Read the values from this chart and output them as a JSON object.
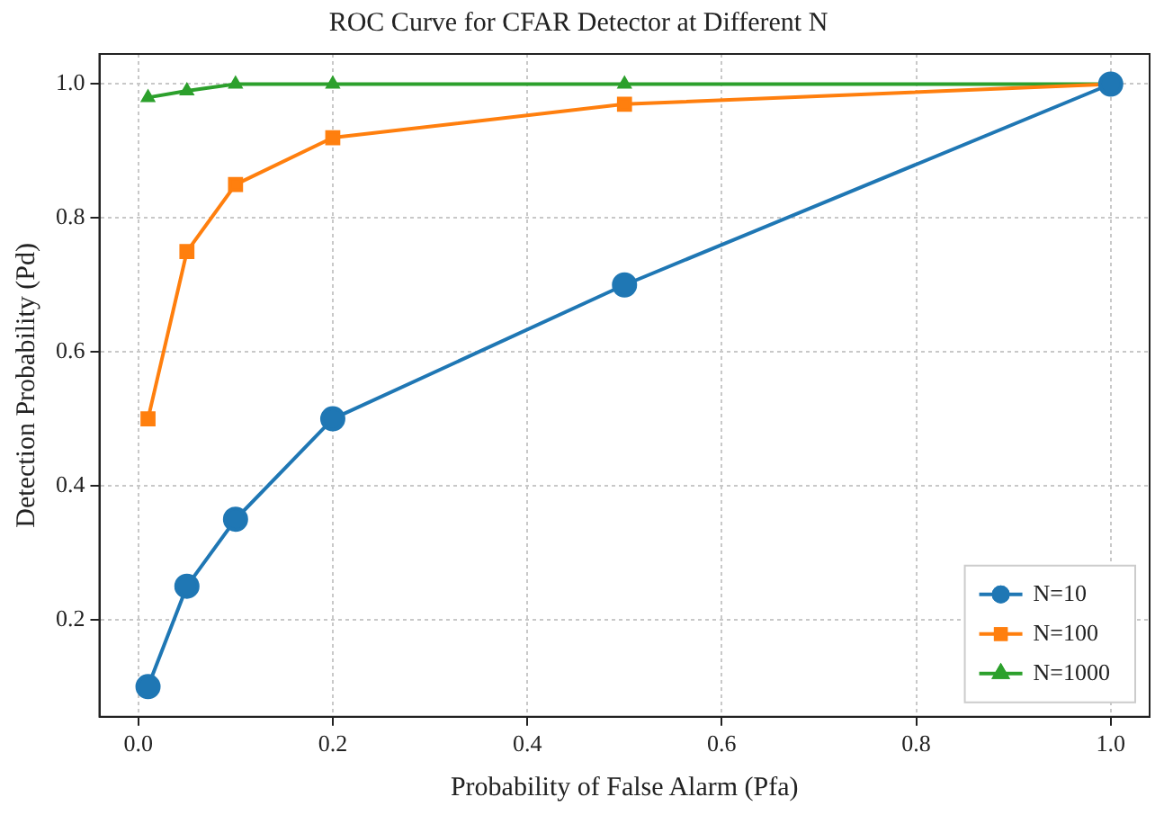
{
  "chart_data": {
    "type": "line",
    "title": "ROC Curve for CFAR Detector at Different N",
    "xlabel": "Probability of False Alarm (Pfa)",
    "ylabel": "Detection Probability (Pd)",
    "x": [
      0.01,
      0.05,
      0.1,
      0.2,
      0.5,
      1.0
    ],
    "series": [
      {
        "name": "N=10",
        "color": "#1f77b4",
        "marker": "circle",
        "values": [
          0.1,
          0.25,
          0.35,
          0.5,
          0.7,
          1.0
        ]
      },
      {
        "name": "N=100",
        "color": "#ff7f0e",
        "marker": "square",
        "values": [
          0.5,
          0.75,
          0.85,
          0.92,
          0.97,
          1.0
        ]
      },
      {
        "name": "N=1000",
        "color": "#2ca02c",
        "marker": "triangle",
        "values": [
          0.98,
          0.99,
          1.0,
          1.0,
          1.0,
          1.0
        ]
      }
    ],
    "xlim": [
      -0.04,
      1.04
    ],
    "xticks": [
      {
        "value": 0,
        "label": "0.0"
      },
      0.2,
      0.4,
      0.6,
      0.8,
      {
        "value": 1,
        "label": "1.0"
      }
    ],
    "ylim": [
      0.055,
      1.045
    ],
    "yticks": [
      0.2,
      0.4,
      0.6,
      0.8,
      {
        "value": 1,
        "label": "1.0"
      }
    ],
    "grid": true,
    "legend": "bottom right",
    "line_style": "solid"
  }
}
